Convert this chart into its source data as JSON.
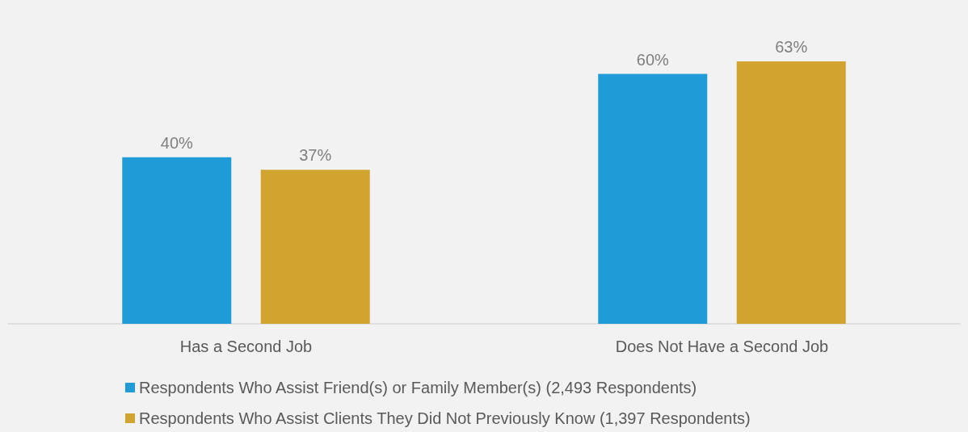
{
  "chart_data": {
    "type": "bar",
    "categories": [
      "Has a Second Job",
      "Does Not Have a Second Job"
    ],
    "series": [
      {
        "name": "Respondents Who Assist Friend(s) or Family Member(s) (2,493 Respondents)",
        "color": "#1f9bd7",
        "values": [
          40,
          60
        ],
        "value_labels": [
          "40%",
          "60%"
        ]
      },
      {
        "name": "Respondents Who Assist Clients They Did Not Previously Know (1,397 Respondents)",
        "color": "#d1a42f",
        "values": [
          37,
          63
        ],
        "value_labels": [
          "37%",
          "63%"
        ]
      }
    ],
    "legend": "bottom",
    "tick_labels": "x"
  }
}
